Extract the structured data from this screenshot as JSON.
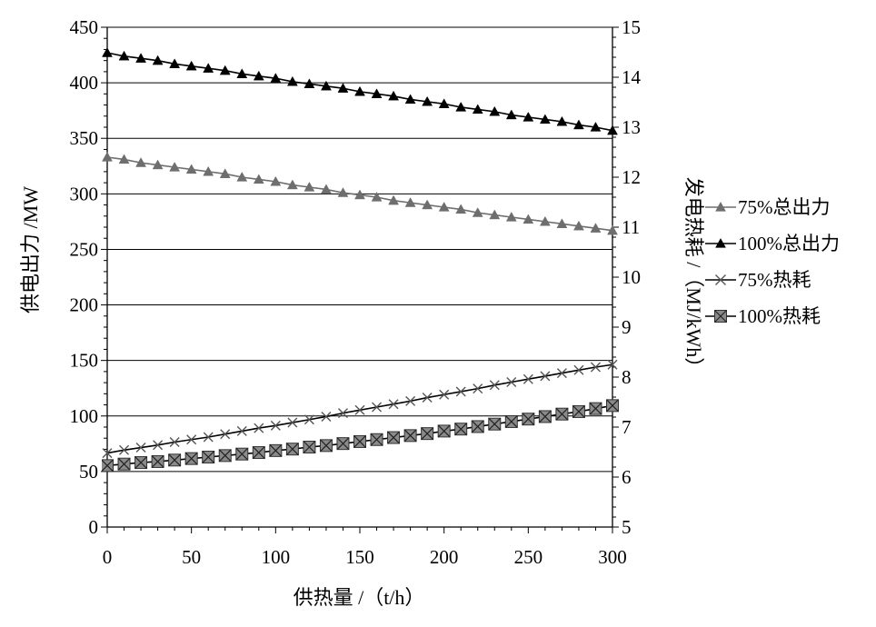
{
  "chart_data": {
    "type": "line",
    "title": "",
    "xlabel": "供热量 /（t/h）",
    "ylabel_left": "供电出力 /MW",
    "ylabel_right": "发电热耗 /（MJ/kWh）",
    "xlim": [
      0,
      300
    ],
    "ylim_left": [
      0,
      450
    ],
    "ylim_right": [
      5,
      15
    ],
    "x_ticks": [
      0,
      50,
      100,
      150,
      200,
      250,
      300
    ],
    "y_left_ticks": [
      0,
      50,
      100,
      150,
      200,
      250,
      300,
      350,
      400,
      450
    ],
    "y_right_ticks": [
      5,
      6,
      7,
      8,
      9,
      10,
      11,
      12,
      13,
      14,
      15
    ],
    "grid": "horizontal",
    "legend_position": "right",
    "x": [
      0,
      10,
      20,
      30,
      40,
      50,
      60,
      70,
      80,
      90,
      100,
      110,
      120,
      130,
      140,
      150,
      160,
      170,
      180,
      190,
      200,
      210,
      220,
      230,
      240,
      250,
      260,
      270,
      280,
      290,
      300
    ],
    "series": [
      {
        "name": "75%总出力",
        "axis": "left",
        "marker": "triangle",
        "color": "#6e6e6e",
        "values": [
          333,
          331,
          328,
          326,
          324,
          322,
          320,
          318,
          315,
          313,
          311,
          308,
          306,
          304,
          301,
          299,
          297,
          294,
          292,
          290,
          288,
          286,
          283,
          281,
          279,
          277,
          275,
          273,
          271,
          269,
          267
        ]
      },
      {
        "name": "100%总出力",
        "axis": "left",
        "marker": "triangle",
        "color": "#000000",
        "values": [
          427,
          424,
          422,
          420,
          417,
          415,
          413,
          411,
          408,
          406,
          404,
          401,
          399,
          397,
          395,
          392,
          390,
          388,
          385,
          383,
          381,
          378,
          376,
          374,
          371,
          369,
          367,
          365,
          362,
          360,
          357
        ]
      },
      {
        "name": "75%热耗",
        "axis": "right",
        "marker": "x",
        "color": "#555555",
        "values": [
          6.48,
          6.54,
          6.59,
          6.64,
          6.7,
          6.75,
          6.8,
          6.86,
          6.92,
          6.98,
          7.03,
          7.09,
          7.15,
          7.21,
          7.28,
          7.34,
          7.4,
          7.46,
          7.52,
          7.59,
          7.65,
          7.71,
          7.77,
          7.84,
          7.9,
          7.96,
          8.02,
          8.08,
          8.14,
          8.2,
          8.25
        ]
      },
      {
        "name": "100%热耗",
        "axis": "right",
        "marker": "square-x",
        "color": "#4a4a4a",
        "values": [
          6.23,
          6.26,
          6.29,
          6.31,
          6.34,
          6.37,
          6.4,
          6.43,
          6.46,
          6.49,
          6.53,
          6.56,
          6.6,
          6.63,
          6.67,
          6.71,
          6.75,
          6.79,
          6.83,
          6.87,
          6.92,
          6.96,
          7.01,
          7.06,
          7.11,
          7.16,
          7.21,
          7.26,
          7.31,
          7.37,
          7.43
        ]
      }
    ]
  }
}
